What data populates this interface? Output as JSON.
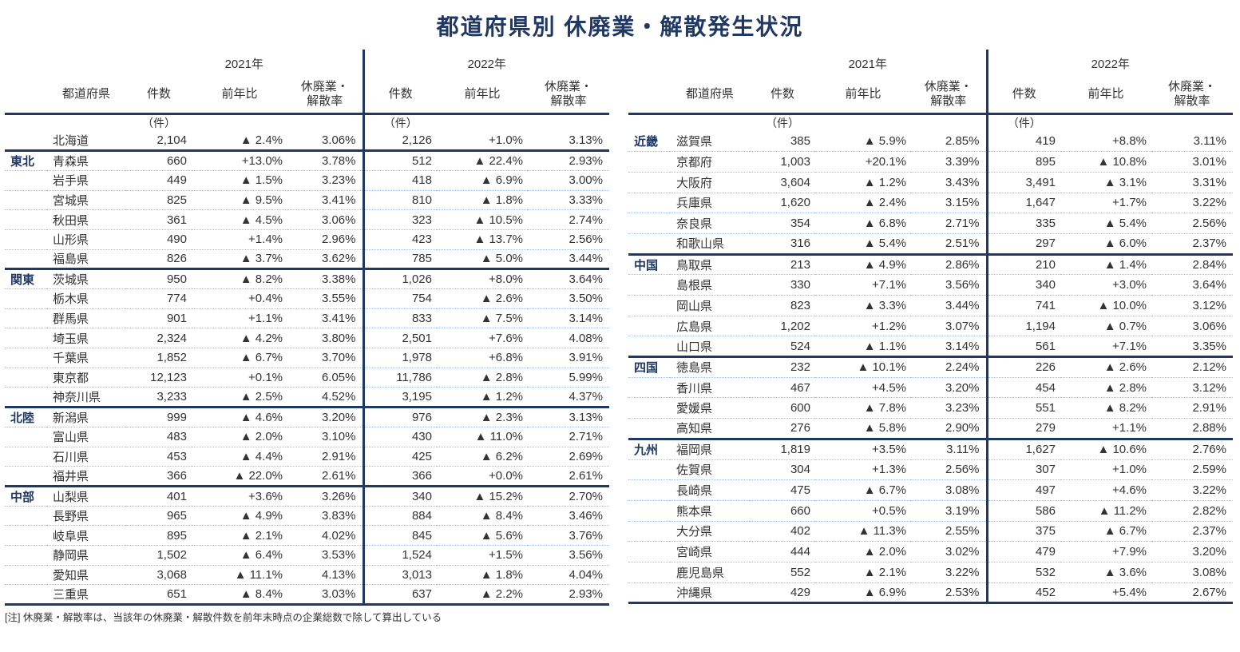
{
  "title": "都道府県別 休廃業・解散発生状況",
  "note": "[注] 休廃業・解散率は、当該年の休廃業・解散件数を前年末時点の企業総数で除して算出している",
  "colors": {
    "navy": "#1f3864",
    "text": "#333333",
    "row_divider": "#a9c3dc",
    "decrease_marker": "#000000"
  },
  "header": {
    "pref": "都道府県",
    "y2021": "2021年",
    "y2022": "2022年",
    "count": "件数",
    "yoy": "前年比",
    "rate1": "休廃業・",
    "rate2": "解散率",
    "unit": "（件）"
  },
  "tables": [
    {
      "id": "left",
      "groups": [
        {
          "region": "",
          "rows": [
            [
              "北海道",
              "2,104",
              "▲ 2.4%",
              "3.06%",
              "2,126",
              "+1.0%",
              "3.13%"
            ]
          ]
        },
        {
          "region": "東北",
          "rows": [
            [
              "青森県",
              "660",
              "+13.0%",
              "3.78%",
              "512",
              "▲ 22.4%",
              "2.93%"
            ],
            [
              "岩手県",
              "449",
              "▲ 1.5%",
              "3.23%",
              "418",
              "▲ 6.9%",
              "3.00%"
            ],
            [
              "宮城県",
              "825",
              "▲ 9.5%",
              "3.41%",
              "810",
              "▲ 1.8%",
              "3.33%"
            ],
            [
              "秋田県",
              "361",
              "▲ 4.5%",
              "3.06%",
              "323",
              "▲ 10.5%",
              "2.74%"
            ],
            [
              "山形県",
              "490",
              "+1.4%",
              "2.96%",
              "423",
              "▲ 13.7%",
              "2.56%"
            ],
            [
              "福島県",
              "826",
              "▲ 3.7%",
              "3.62%",
              "785",
              "▲ 5.0%",
              "3.44%"
            ]
          ]
        },
        {
          "region": "関東",
          "rows": [
            [
              "茨城県",
              "950",
              "▲ 8.2%",
              "3.38%",
              "1,026",
              "+8.0%",
              "3.64%"
            ],
            [
              "栃木県",
              "774",
              "+0.4%",
              "3.55%",
              "754",
              "▲ 2.6%",
              "3.50%"
            ],
            [
              "群馬県",
              "901",
              "+1.1%",
              "3.41%",
              "833",
              "▲ 7.5%",
              "3.14%"
            ],
            [
              "埼玉県",
              "2,324",
              "▲ 4.2%",
              "3.80%",
              "2,501",
              "+7.6%",
              "4.08%"
            ],
            [
              "千葉県",
              "1,852",
              "▲ 6.7%",
              "3.70%",
              "1,978",
              "+6.8%",
              "3.91%"
            ],
            [
              "東京都",
              "12,123",
              "+0.1%",
              "6.05%",
              "11,786",
              "▲ 2.8%",
              "5.99%"
            ],
            [
              "神奈川県",
              "3,233",
              "▲ 2.5%",
              "4.52%",
              "3,195",
              "▲ 1.2%",
              "4.37%"
            ]
          ]
        },
        {
          "region": "北陸",
          "rows": [
            [
              "新潟県",
              "999",
              "▲ 4.6%",
              "3.20%",
              "976",
              "▲ 2.3%",
              "3.13%"
            ],
            [
              "富山県",
              "483",
              "▲ 2.0%",
              "3.10%",
              "430",
              "▲ 11.0%",
              "2.71%"
            ],
            [
              "石川県",
              "453",
              "▲ 4.4%",
              "2.91%",
              "425",
              "▲ 6.2%",
              "2.69%"
            ],
            [
              "福井県",
              "366",
              "▲ 22.0%",
              "2.61%",
              "366",
              "+0.0%",
              "2.61%"
            ]
          ]
        },
        {
          "region": "中部",
          "rows": [
            [
              "山梨県",
              "401",
              "+3.6%",
              "3.26%",
              "340",
              "▲ 15.2%",
              "2.70%"
            ],
            [
              "長野県",
              "965",
              "▲ 4.9%",
              "3.83%",
              "884",
              "▲ 8.4%",
              "3.46%"
            ],
            [
              "岐阜県",
              "895",
              "▲ 2.1%",
              "4.02%",
              "845",
              "▲ 5.6%",
              "3.76%"
            ],
            [
              "静岡県",
              "1,502",
              "▲ 6.4%",
              "3.53%",
              "1,524",
              "+1.5%",
              "3.56%"
            ],
            [
              "愛知県",
              "3,068",
              "▲ 11.1%",
              "4.13%",
              "3,013",
              "▲ 1.8%",
              "4.04%"
            ],
            [
              "三重県",
              "651",
              "▲ 8.4%",
              "3.03%",
              "637",
              "▲ 2.2%",
              "2.93%"
            ]
          ]
        }
      ]
    },
    {
      "id": "right",
      "groups": [
        {
          "region": "近畿",
          "rows": [
            [
              "滋賀県",
              "385",
              "▲ 5.9%",
              "2.85%",
              "419",
              "+8.8%",
              "3.11%"
            ],
            [
              "京都府",
              "1,003",
              "+20.1%",
              "3.39%",
              "895",
              "▲ 10.8%",
              "3.01%"
            ],
            [
              "大阪府",
              "3,604",
              "▲ 1.2%",
              "3.43%",
              "3,491",
              "▲ 3.1%",
              "3.31%"
            ],
            [
              "兵庫県",
              "1,620",
              "▲ 2.4%",
              "3.15%",
              "1,647",
              "+1.7%",
              "3.22%"
            ],
            [
              "奈良県",
              "354",
              "▲ 6.8%",
              "2.71%",
              "335",
              "▲ 5.4%",
              "2.56%"
            ],
            [
              "和歌山県",
              "316",
              "▲ 5.4%",
              "2.51%",
              "297",
              "▲ 6.0%",
              "2.37%"
            ]
          ]
        },
        {
          "region": "中国",
          "rows": [
            [
              "鳥取県",
              "213",
              "▲ 4.9%",
              "2.86%",
              "210",
              "▲ 1.4%",
              "2.84%"
            ],
            [
              "島根県",
              "330",
              "+7.1%",
              "3.56%",
              "340",
              "+3.0%",
              "3.64%"
            ],
            [
              "岡山県",
              "823",
              "▲ 3.3%",
              "3.44%",
              "741",
              "▲ 10.0%",
              "3.12%"
            ],
            [
              "広島県",
              "1,202",
              "+1.2%",
              "3.07%",
              "1,194",
              "▲ 0.7%",
              "3.06%"
            ],
            [
              "山口県",
              "524",
              "▲ 1.1%",
              "3.14%",
              "561",
              "+7.1%",
              "3.35%"
            ]
          ]
        },
        {
          "region": "四国",
          "rows": [
            [
              "徳島県",
              "232",
              "▲ 10.1%",
              "2.24%",
              "226",
              "▲ 2.6%",
              "2.12%"
            ],
            [
              "香川県",
              "467",
              "+4.5%",
              "3.20%",
              "454",
              "▲ 2.8%",
              "3.12%"
            ],
            [
              "愛媛県",
              "600",
              "▲ 7.8%",
              "3.23%",
              "551",
              "▲ 8.2%",
              "2.91%"
            ],
            [
              "高知県",
              "276",
              "▲ 5.8%",
              "2.90%",
              "279",
              "+1.1%",
              "2.88%"
            ]
          ]
        },
        {
          "region": "九州",
          "rows": [
            [
              "福岡県",
              "1,819",
              "+3.5%",
              "3.11%",
              "1,627",
              "▲ 10.6%",
              "2.76%"
            ],
            [
              "佐賀県",
              "304",
              "+1.3%",
              "2.56%",
              "307",
              "+1.0%",
              "2.59%"
            ],
            [
              "長崎県",
              "475",
              "▲ 6.7%",
              "3.08%",
              "497",
              "+4.6%",
              "3.22%"
            ],
            [
              "熊本県",
              "660",
              "+0.5%",
              "3.19%",
              "586",
              "▲ 11.2%",
              "2.82%"
            ],
            [
              "大分県",
              "402",
              "▲ 11.3%",
              "2.55%",
              "375",
              "▲ 6.7%",
              "2.37%"
            ],
            [
              "宮崎県",
              "444",
              "▲ 2.0%",
              "3.02%",
              "479",
              "+7.9%",
              "3.20%"
            ],
            [
              "鹿児島県",
              "552",
              "▲ 2.1%",
              "3.22%",
              "532",
              "▲ 3.6%",
              "3.08%"
            ],
            [
              "沖縄県",
              "429",
              "▲ 6.9%",
              "2.53%",
              "452",
              "+5.4%",
              "2.67%"
            ]
          ]
        }
      ]
    }
  ]
}
